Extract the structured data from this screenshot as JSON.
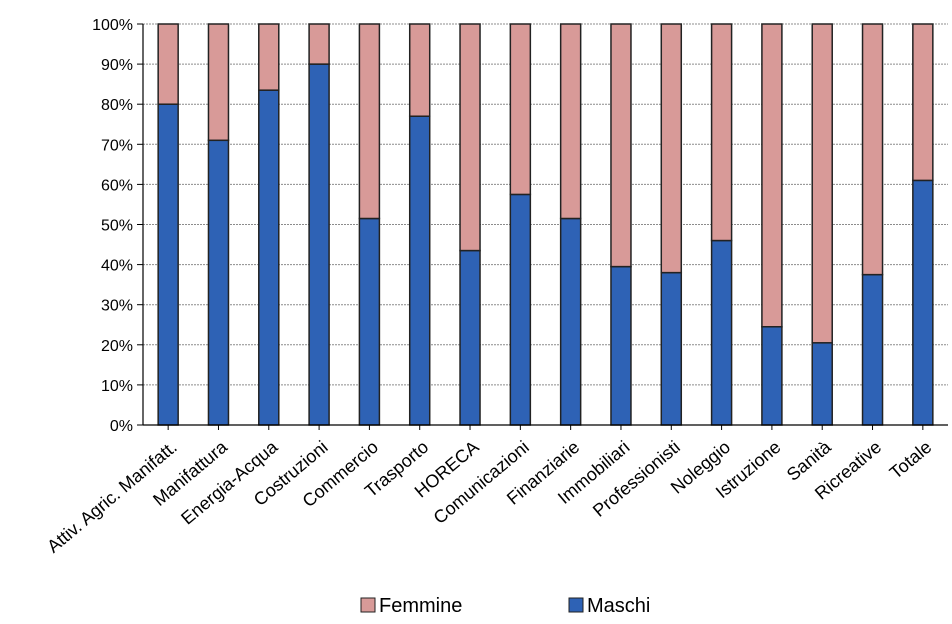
{
  "chart_data": {
    "type": "bar",
    "stacked": true,
    "categories": [
      "Attiv. Agric. Manifatt.",
      "Manifattura",
      "Energia-Acqua",
      "Costruzioni",
      "Commercio",
      "Trasporto",
      "HORECA",
      "Comunicazioni",
      "Finanziarie",
      "Immobiliari",
      "Professionisti",
      "Noleggio",
      "Istruzione",
      "Sanità",
      "Ricreative",
      "Totale"
    ],
    "series": [
      {
        "name": "Maschi",
        "color": "#2e62b5",
        "values": [
          80,
          71,
          83.5,
          90,
          51.5,
          77,
          43.5,
          57.5,
          51.5,
          39.5,
          38,
          46,
          24.5,
          20.5,
          37.5,
          61
        ]
      },
      {
        "name": "Femmine",
        "color": "#d89a98",
        "values": [
          20,
          29,
          16.5,
          10,
          48.5,
          23,
          56.5,
          42.5,
          48.5,
          60.5,
          62,
          54,
          75.5,
          79.5,
          62.5,
          39
        ]
      }
    ],
    "ylim": [
      0,
      100
    ],
    "yticks": [
      "0%",
      "10%",
      "20%",
      "30%",
      "40%",
      "50%",
      "60%",
      "70%",
      "80%",
      "90%",
      "100%"
    ],
    "grid": true,
    "legend_position": "bottom",
    "legend": [
      "Femmine",
      "Maschi"
    ]
  }
}
